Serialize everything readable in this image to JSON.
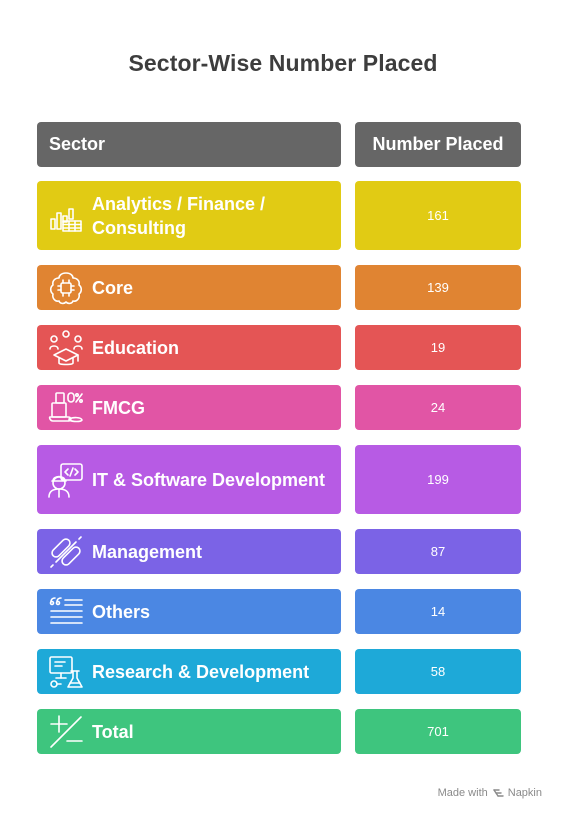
{
  "title": "Sector-Wise Number Placed",
  "header": {
    "sector": "Sector",
    "value": "Number Placed",
    "color": "#666666"
  },
  "rows": [
    {
      "label": "Analytics / Finance / Consulting",
      "value": "161",
      "color": "#E1CB14",
      "icon": "analytics-chart-icon"
    },
    {
      "label": "Core",
      "value": "139",
      "color": "#E08432",
      "icon": "brain-chip-icon"
    },
    {
      "label": "Education",
      "value": "19",
      "color": "#E45555",
      "icon": "graduation-cap-icon"
    },
    {
      "label": "FMCG",
      "value": "24",
      "color": "#E155A5",
      "icon": "consumer-goods-icon"
    },
    {
      "label": "IT & Software Development",
      "value": "199",
      "color": "#B75BE4",
      "icon": "developer-icon"
    },
    {
      "label": "Management",
      "value": "87",
      "color": "#7B63E6",
      "icon": "management-links-icon"
    },
    {
      "label": "Others",
      "value": "14",
      "color": "#4B87E3",
      "icon": "list-quote-icon"
    },
    {
      "label": "Research & Development",
      "value": "58",
      "color": "#1EA9D8",
      "icon": "research-lab-icon"
    },
    {
      "label": "Total",
      "value": "701",
      "color": "#3EC57E",
      "icon": "plus-minus-icon"
    }
  ],
  "footer": {
    "made_with": "Made with",
    "brand": "Napkin"
  }
}
